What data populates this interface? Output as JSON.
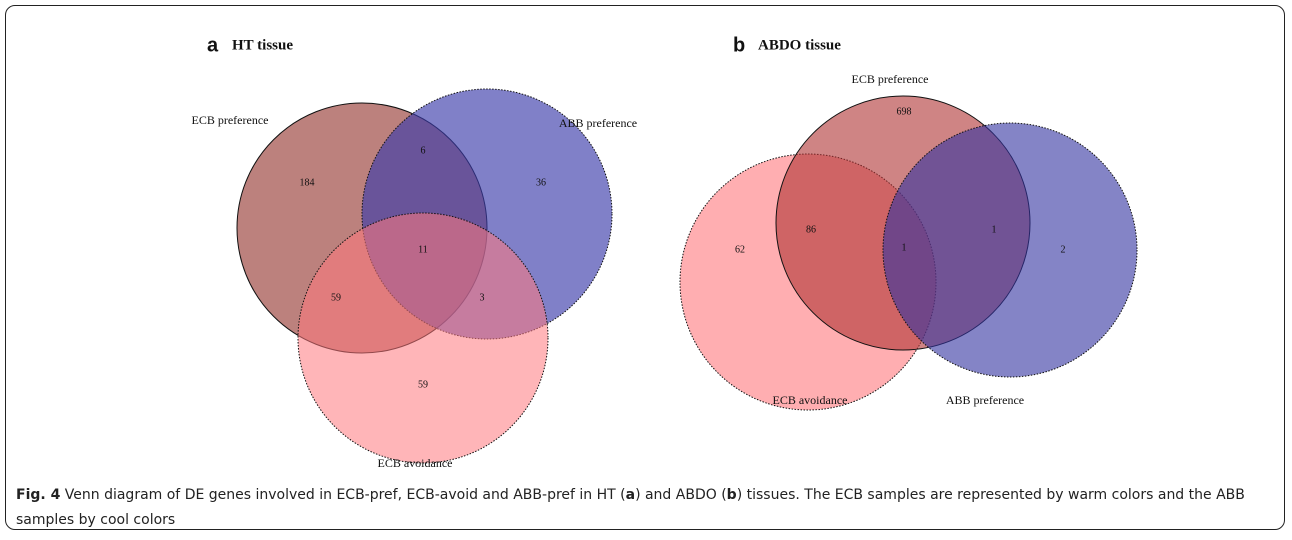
{
  "panels": [
    {
      "label": "a",
      "title": "HT tissue",
      "sets": [
        "ECB preference",
        "ABB preference",
        "ECB avoidance"
      ],
      "regions": [
        "184",
        "6",
        "36",
        "11",
        "59",
        "3",
        "59"
      ]
    },
    {
      "label": "b",
      "title": "ABDO tissue",
      "sets": [
        "ECB preference",
        "ECB avoidance",
        "ABB preference"
      ],
      "regions": [
        "698",
        "62",
        "86",
        "1",
        "1",
        "2"
      ]
    }
  ],
  "caption": {
    "label": "Fig. 4",
    "parts": [
      "Venn diagram of DE genes involved in ECB-pref, ECB-avoid and ABB-pref in HT (",
      "a",
      ") and ABDO (",
      "b",
      ") tissues. The ECB samples are represented by warm colors and the ABB samples by cool colors"
    ]
  }
}
